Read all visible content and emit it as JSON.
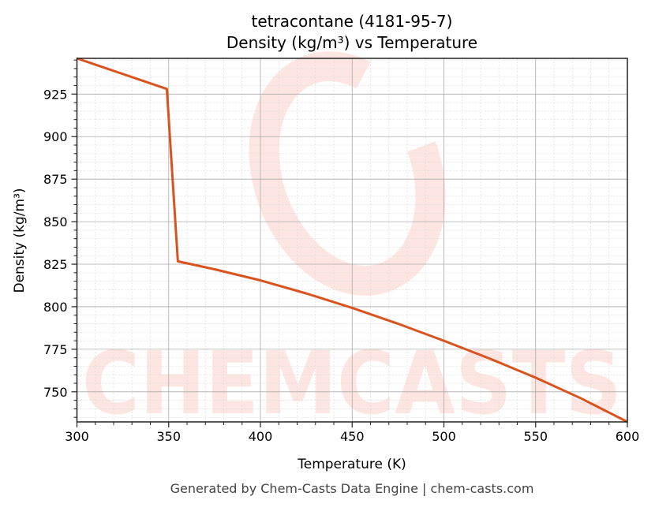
{
  "chart_data": {
    "type": "line",
    "title": "tetracontane (4181-95-7)",
    "subtitle": "Density (kg/m³) vs Temperature",
    "xlabel": "Temperature (K)",
    "ylabel": "Density (kg/m³)",
    "xlim": [
      300,
      600
    ],
    "ylim": [
      732.3,
      946
    ],
    "xticks": [
      300,
      350,
      400,
      450,
      500,
      550,
      600
    ],
    "yticks": [
      750,
      775,
      800,
      825,
      850,
      875,
      900,
      925
    ],
    "grid": true,
    "series": [
      {
        "name": "Density",
        "color": "#d9531e",
        "x": [
          300,
          349,
          355,
          375,
          400,
          425,
          450,
          475,
          500,
          525,
          550,
          575,
          600
        ],
        "y": [
          946,
          928,
          826.7,
          822,
          815.5,
          807.8,
          799.3,
          790,
          780,
          769.5,
          758.3,
          746,
          732.3
        ]
      }
    ],
    "footer": "Generated by Chem-Casts Data Engine | chem-casts.com",
    "watermark": "CHEMCASTS"
  }
}
